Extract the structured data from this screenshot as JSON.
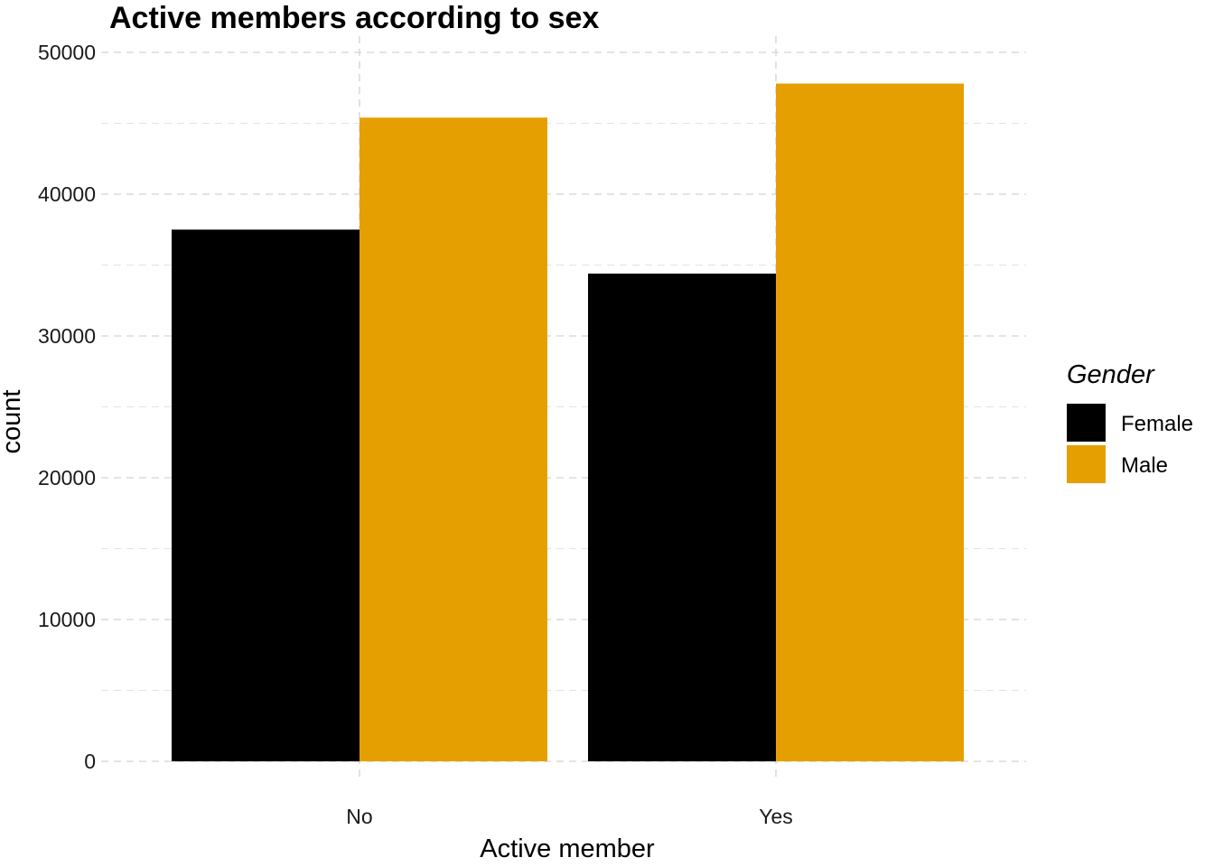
{
  "chart_data": {
    "type": "bar",
    "title": "Active members according to sex",
    "xlabel": "Active member",
    "ylabel": "count",
    "categories": [
      "No",
      "Yes"
    ],
    "series": [
      {
        "name": "Female",
        "color": "#000000",
        "values": [
          37500,
          34400
        ]
      },
      {
        "name": "Male",
        "color": "#E69F00",
        "values": [
          45400,
          47800
        ]
      }
    ],
    "ylim": [
      0,
      50000
    ],
    "yticks": [
      "0",
      "10000",
      "20000",
      "30000",
      "40000",
      "50000"
    ],
    "grid": true,
    "grid_style": "dashed",
    "legend": {
      "title": "Gender",
      "position": "right"
    }
  }
}
